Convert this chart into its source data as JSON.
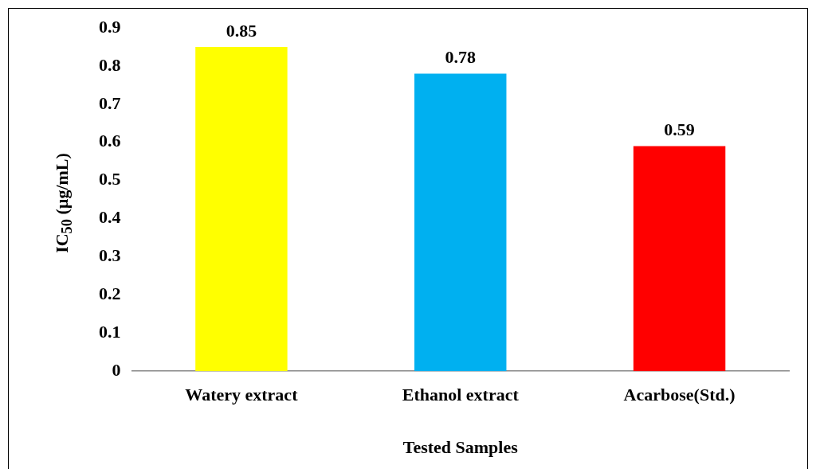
{
  "chart_data": {
    "type": "bar",
    "xlabel": "Tested Samples",
    "ylabel": "IC$_{50}$ (µg/mL)",
    "categories": [
      "Watery extract",
      "Ethanol extract",
      "Acarbose(Std.)"
    ],
    "values": [
      0.85,
      0.78,
      0.59
    ],
    "colors": [
      "#ffff00",
      "#00b0f0",
      "#ff0000"
    ],
    "ylim": [
      0,
      0.9
    ],
    "yticks": [
      0,
      0.1,
      0.2,
      0.3,
      0.4,
      0.5,
      0.6,
      0.7,
      0.8,
      0.9
    ],
    "data_labels": true,
    "grid": false,
    "legend": false
  }
}
